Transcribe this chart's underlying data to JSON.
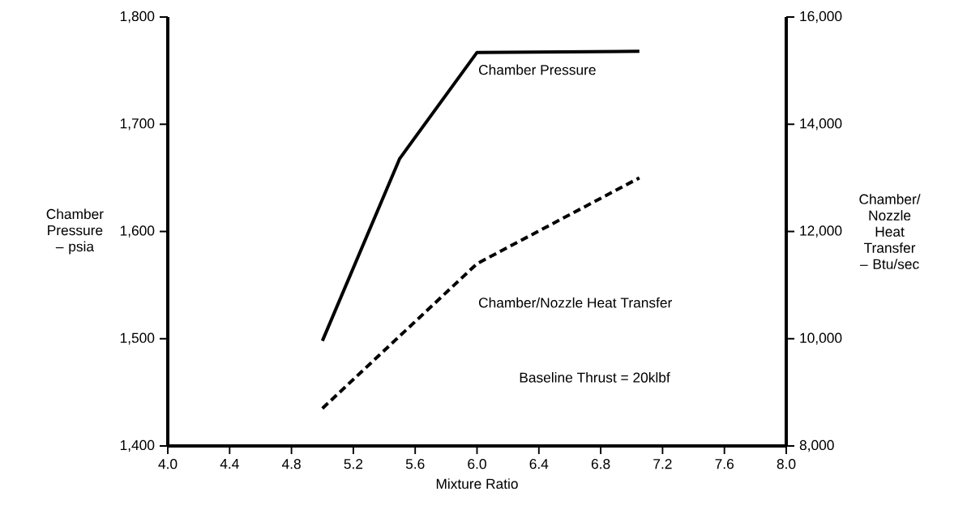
{
  "chart_data": {
    "type": "line",
    "xlabel": "Mixture Ratio",
    "ylabel": "Chamber Pressure – psia",
    "y2label": "Chamber/ Nozzle Heat Transfer – Btu/sec",
    "xlim": [
      4,
      8
    ],
    "ylim": [
      1400,
      1800
    ],
    "y2lim": [
      8000,
      16000
    ],
    "xticks": [
      {
        "value": 4,
        "label": "4.0"
      },
      4.4,
      4.8,
      5.2,
      5.6,
      {
        "value": 6,
        "label": "6.0"
      },
      6.4,
      6.8,
      7.2,
      7.6,
      {
        "value": 8,
        "label": "8.0"
      }
    ],
    "yticks": [
      {
        "value": 1400,
        "label": "1,400"
      },
      {
        "value": 1500,
        "label": "1,500"
      },
      {
        "value": 1600,
        "label": "1,600"
      },
      {
        "value": 1700,
        "label": "1,700"
      },
      {
        "value": 1800,
        "label": "1,800"
      }
    ],
    "y2ticks": [
      {
        "value": 8000,
        "label": "8,000"
      },
      {
        "value": 10000,
        "label": "10,000"
      },
      {
        "value": 12000,
        "label": "12,000"
      },
      {
        "value": 14000,
        "label": "14,000"
      },
      {
        "value": 16000,
        "label": "16,000"
      }
    ],
    "marker": "none",
    "grid": false,
    "series": [
      {
        "name": "Chamber Pressure",
        "color": "#000000",
        "line_style": "solid",
        "x": [
          5.0,
          5.5,
          6.0,
          7.05
        ],
        "values": [
          1498,
          1668,
          1767,
          1768
        ]
      },
      {
        "name": "Chamber/Nozzle Heat Transfer",
        "color": "#000000",
        "line_style": "dashed",
        "axis": "y2",
        "x": [
          5.0,
          6.0,
          7.05
        ],
        "values": [
          8700,
          11400,
          13000
        ]
      }
    ],
    "annotations": [
      "Baseline Thrust = 20klbf"
    ]
  }
}
